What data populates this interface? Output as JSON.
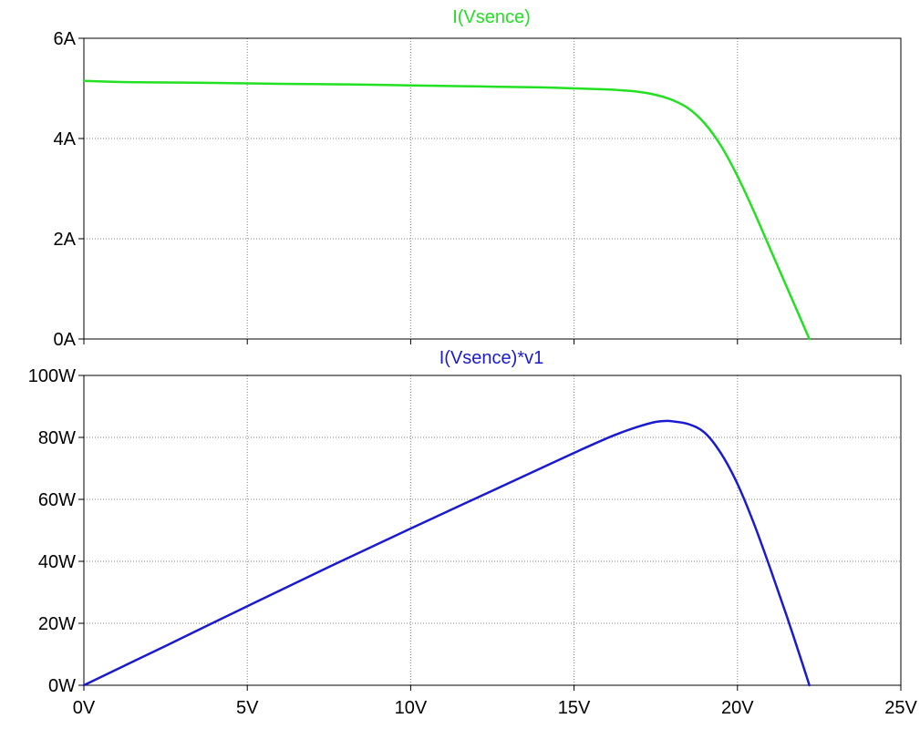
{
  "chart_data": [
    {
      "type": "line",
      "title": "I(Vsence)",
      "title_color": "#22e022",
      "xlabel": "",
      "ylabel": "",
      "xlim": [
        0,
        25
      ],
      "ylim": [
        0,
        6
      ],
      "x_ticks": [
        "0V",
        "5V",
        "10V",
        "15V",
        "20V",
        "25V"
      ],
      "x_ticks_visible": false,
      "y_ticks": [
        "0A",
        "2A",
        "4A",
        "6A"
      ],
      "grid": true,
      "series": [
        {
          "color": "#22e022",
          "x": [
            0,
            1,
            2,
            4,
            5,
            6,
            8,
            10,
            12,
            13,
            14,
            15,
            16,
            16.5,
            17,
            17.5,
            18,
            18.5,
            19,
            19.5,
            20,
            20.5,
            21,
            21.5,
            22,
            22.2
          ],
          "y": [
            5.15,
            5.13,
            5.12,
            5.11,
            5.1,
            5.09,
            5.08,
            5.06,
            5.04,
            5.03,
            5.02,
            5.0,
            4.98,
            4.96,
            4.93,
            4.87,
            4.77,
            4.6,
            4.3,
            3.85,
            3.25,
            2.55,
            1.8,
            1.05,
            0.3,
            0.0
          ]
        }
      ]
    },
    {
      "type": "line",
      "title": "I(Vsence)*v1",
      "title_color": "#1a1ad0",
      "xlabel": "",
      "ylabel": "",
      "xlim": [
        0,
        25
      ],
      "ylim": [
        0,
        100
      ],
      "x_ticks": [
        "0V",
        "5V",
        "10V",
        "15V",
        "20V",
        "25V"
      ],
      "x_ticks_visible": true,
      "y_ticks": [
        "0W",
        "20W",
        "40W",
        "60W",
        "80W",
        "100W"
      ],
      "grid": true,
      "series": [
        {
          "color": "#1a1ad0",
          "x": [
            0,
            2.5,
            5,
            7.5,
            10,
            12.5,
            15,
            16,
            16.5,
            17,
            17.5,
            17.8,
            18,
            18.5,
            19,
            19.5,
            20,
            20.5,
            21,
            21.5,
            22,
            22.2
          ],
          "y": [
            0,
            12.7,
            25.5,
            38.2,
            50.6,
            62.8,
            75.0,
            79.7,
            81.8,
            83.6,
            85.0,
            85.3,
            85.2,
            84.3,
            81.5,
            74.8,
            65.0,
            52.3,
            37.8,
            22.6,
            6.6,
            0
          ]
        }
      ]
    }
  ]
}
